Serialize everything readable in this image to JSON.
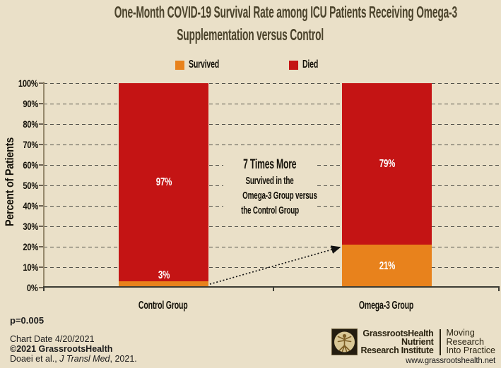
{
  "page": {
    "background_color": "#EAE0C8"
  },
  "title": {
    "line1": "One-Month COVID-19 Survival Rate among ICU Patients Receiving Omega-3",
    "line2": "Supplementation versus Control",
    "color": "#4B432C"
  },
  "chart_data": {
    "type": "bar",
    "stacked": true,
    "title": "One-Month COVID-19 Survival Rate among ICU Patients Receiving Omega-3 Supplementation versus Control",
    "categories": [
      "Control Group",
      "Omega-3 Group"
    ],
    "series": [
      {
        "name": "Survived",
        "color": "#E8821C",
        "values": [
          3,
          21
        ]
      },
      {
        "name": "Died",
        "color": "#C41414",
        "values": [
          97,
          79
        ]
      }
    ],
    "value_labels": [
      "3%",
      "97%",
      "21%",
      "79%"
    ],
    "xlabel": "",
    "ylabel": "Percent of Patients",
    "ylim": [
      0,
      100
    ],
    "ytick_step": 10,
    "ytick_labels": [
      "100%",
      "90%",
      "80%",
      "70%",
      "60%",
      "50%",
      "40%",
      "30%",
      "20%",
      "10%",
      "0%"
    ],
    "grid": "horizontal-dashed",
    "legend_position": "top-center",
    "annotation": {
      "headline": "7 Times More",
      "lines": [
        "Survived in the",
        "Omega-3 Group versus",
        "the Control Group"
      ],
      "arrow": "dotted arrow from Control Group survived segment (3%) to Omega-3 Group survived segment (21%)"
    }
  },
  "footnotes": {
    "p_value": "p=0.005",
    "chart_date": "Chart Date 4/20/2021",
    "copyright": "©2021 GrassrootsHealth",
    "citation_prefix": "Doaei et al., ",
    "citation_journal": "J Transl Med",
    "citation_suffix": ", 2021."
  },
  "branding": {
    "org_line1": "GrassrootsHealth",
    "org_line2": "Nutrient",
    "org_line3": "Research Institute",
    "tagline_line1": "Moving",
    "tagline_line2": "Research",
    "tagline_line3": "Into Practice",
    "website": "www.grassrootshealth.net",
    "logo": "vitruvian-man-icon"
  }
}
